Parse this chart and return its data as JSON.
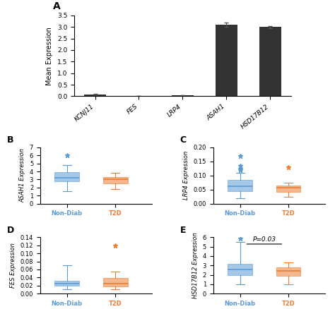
{
  "panel_A": {
    "genes": [
      "KCNJ11",
      "FES",
      "LRP4",
      "ASAH1",
      "HSD17B12"
    ],
    "values": [
      0.08,
      0.01,
      0.04,
      3.1,
      3.0
    ],
    "errors": [
      0.02,
      0.005,
      0.01,
      0.08,
      0.04
    ],
    "bar_color": "#333333",
    "ylabel": "Mean Expression",
    "ylim": [
      0,
      3.5
    ],
    "yticks": [
      0,
      0.5,
      1.0,
      1.5,
      2.0,
      2.5,
      3.0,
      3.5
    ],
    "label": "A"
  },
  "panel_B": {
    "label": "B",
    "ylabel": "ASAH1 Expression",
    "ylim": [
      0,
      7
    ],
    "yticks": [
      0,
      1,
      2,
      3,
      4,
      5,
      6,
      7
    ],
    "nondiab": {
      "q1": 2.8,
      "median": 3.2,
      "q3": 3.9,
      "whisker_low": 1.5,
      "whisker_high": 4.8,
      "outliers": [
        6.0
      ]
    },
    "t2d": {
      "q1": 2.5,
      "median": 3.0,
      "q3": 3.3,
      "whisker_low": 1.8,
      "whisker_high": 3.8,
      "outliers": []
    }
  },
  "panel_C": {
    "label": "C",
    "ylabel": "LRP4 Expression",
    "ylim": [
      0,
      0.2
    ],
    "yticks": [
      0,
      0.05,
      0.1,
      0.15,
      0.2
    ],
    "nondiab": {
      "q1": 0.045,
      "median": 0.062,
      "q3": 0.085,
      "whisker_low": 0.02,
      "whisker_high": 0.11,
      "outliers": [
        0.17,
        0.135,
        0.125,
        0.12
      ]
    },
    "t2d": {
      "q1": 0.042,
      "median": 0.056,
      "q3": 0.065,
      "whisker_low": 0.025,
      "whisker_high": 0.075,
      "outliers": [
        0.13
      ]
    }
  },
  "panel_D": {
    "label": "D",
    "ylabel": "FES Expression",
    "ylim": [
      0,
      0.14
    ],
    "yticks": [
      0,
      0.02,
      0.04,
      0.06,
      0.08,
      0.1,
      0.12,
      0.14
    ],
    "nondiab": {
      "q1": 0.02,
      "median": 0.025,
      "q3": 0.032,
      "whisker_low": 0.01,
      "whisker_high": 0.07,
      "outliers": []
    },
    "t2d": {
      "q1": 0.018,
      "median": 0.025,
      "q3": 0.038,
      "whisker_low": 0.01,
      "whisker_high": 0.055,
      "outliers": [
        0.12
      ]
    }
  },
  "panel_E": {
    "label": "E",
    "ylabel": "HSD17B12 Expression",
    "ylim": [
      0,
      6
    ],
    "yticks": [
      0,
      1,
      2,
      3,
      4,
      5,
      6
    ],
    "pvalue": "P=0.03",
    "nondiab": {
      "q1": 2.0,
      "median": 2.6,
      "q3": 3.2,
      "whisker_low": 1.0,
      "whisker_high": 5.5,
      "outliers": [
        5.9
      ]
    },
    "t2d": {
      "q1": 1.9,
      "median": 2.4,
      "q3": 2.8,
      "whisker_low": 1.0,
      "whisker_high": 3.3,
      "outliers": []
    }
  },
  "colors": {
    "nondiab": "#5b9bd5",
    "t2d": "#ed7d31"
  },
  "xlabel_nondiab": "Non-Diab",
  "xlabel_t2d": "T2D",
  "background": "#ffffff"
}
